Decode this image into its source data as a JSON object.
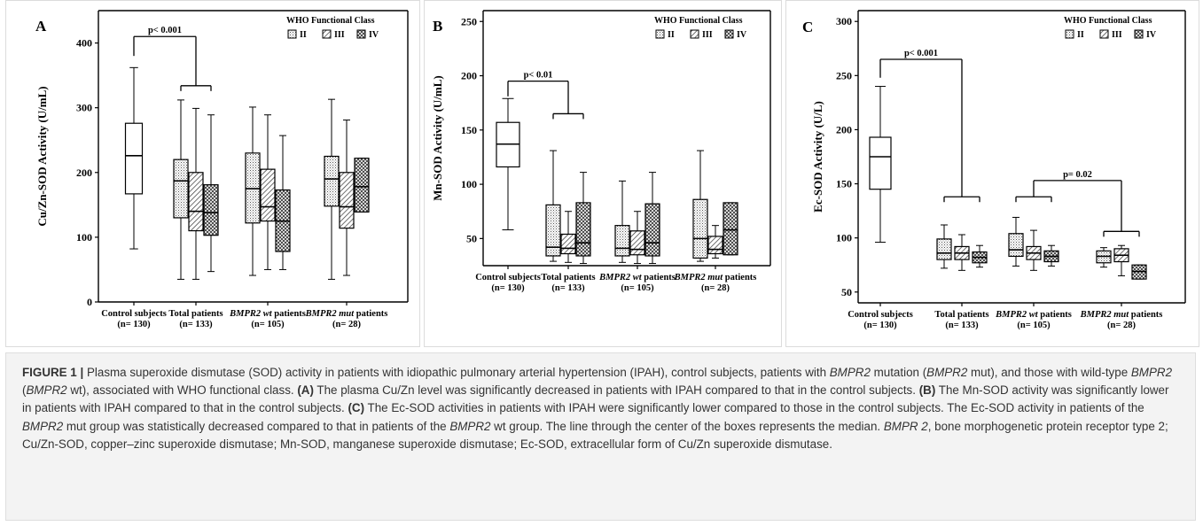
{
  "figure": {
    "caption_label": "FIGURE 1 |",
    "caption_segments": [
      {
        "t": "Plasma superoxide dismutase (SOD) activity in patients with idiopathic pulmonary arterial hypertension (IPAH), control subjects, patients with "
      },
      {
        "t": "BMPR2",
        "s": "i"
      },
      {
        "t": " mutation ("
      },
      {
        "t": "BMPR2",
        "s": "i"
      },
      {
        "t": " mut), and those with wild-type "
      },
      {
        "t": "BMPR2",
        "s": "i"
      },
      {
        "t": " ("
      },
      {
        "t": "BMPR2",
        "s": "i"
      },
      {
        "t": " wt), associated with WHO functional class. "
      },
      {
        "t": "(A)",
        "s": "b"
      },
      {
        "t": " The plasma Cu/Zn level was significantly decreased in patients with IPAH compared to that in the control subjects. "
      },
      {
        "t": "(B)",
        "s": "b"
      },
      {
        "t": " The Mn-SOD activity was significantly lower in patients with IPAH compared to that in the control subjects. "
      },
      {
        "t": "(C)",
        "s": "b"
      },
      {
        "t": " The Ec-SOD activities in patients with IPAH were significantly lower compared to those in the control subjects. The Ec-SOD activity in patients of the "
      },
      {
        "t": "BMPR2",
        "s": "i"
      },
      {
        "t": " mut group was statistically decreased compared to that in patients of the "
      },
      {
        "t": "BMPR2",
        "s": "i"
      },
      {
        "t": " wt group. The line through the center of the boxes represents the median. "
      },
      {
        "t": "BMPR 2",
        "s": "i"
      },
      {
        "t": ", bone morphogenetic protein receptor type 2; Cu/Zn-SOD, copper–zinc superoxide dismutase; Mn-SOD, manganese superoxide dismutase; Ec-SOD, extracellular form of Cu/Zn superoxide dismutase."
      }
    ]
  },
  "chart_data": [
    {
      "type": "box",
      "panel_label": "A",
      "ylabel": "Cu/Zn-SOD Activity (U/mL)",
      "ylim": [
        0,
        450
      ],
      "yticks": [
        0,
        100,
        200,
        300,
        400
      ],
      "legend": {
        "title": "WHO Functional Class",
        "items": [
          "II",
          "III",
          "IV"
        ],
        "placement": "top-right"
      },
      "groups": [
        {
          "line1": "Control subjects",
          "italic": "",
          "line2": "(n= 130)"
        },
        {
          "line1": "Total patients",
          "italic": "",
          "line2": "(n= 133)"
        },
        {
          "line1": " patients",
          "italic": "BMPR2 wt",
          "line2": "(n= 105)"
        },
        {
          "line1": " patients",
          "italic": "BMPR2 mut",
          "line2": "(n= 28)"
        }
      ],
      "boxes": [
        {
          "group": 0,
          "class": "control",
          "min": 82,
          "q1": 167,
          "median": 226,
          "q3": 276,
          "max": 362
        },
        {
          "group": 1,
          "class": "II",
          "min": 35,
          "q1": 130,
          "median": 187,
          "q3": 220,
          "max": 312
        },
        {
          "group": 1,
          "class": "III",
          "min": 35,
          "q1": 110,
          "median": 140,
          "q3": 200,
          "max": 299
        },
        {
          "group": 1,
          "class": "IV",
          "min": 47,
          "q1": 103,
          "median": 138,
          "q3": 181,
          "max": 289
        },
        {
          "group": 2,
          "class": "II",
          "min": 41,
          "q1": 122,
          "median": 175,
          "q3": 230,
          "max": 301
        },
        {
          "group": 2,
          "class": "III",
          "min": 50,
          "q1": 125,
          "median": 147,
          "q3": 205,
          "max": 289
        },
        {
          "group": 2,
          "class": "IV",
          "min": 50,
          "q1": 78,
          "median": 125,
          "q3": 173,
          "max": 257
        },
        {
          "group": 3,
          "class": "II",
          "min": 35,
          "q1": 148,
          "median": 190,
          "q3": 225,
          "max": 313
        },
        {
          "group": 3,
          "class": "III",
          "min": 41,
          "q1": 114,
          "median": 147,
          "q3": 200,
          "max": 281
        },
        {
          "group": 3,
          "class": "IV",
          "min": 139,
          "q1": 139,
          "median": 178,
          "q3": 222,
          "max": 222
        }
      ],
      "annotations": [
        {
          "text": "p< 0.001",
          "from_group": 0,
          "to_group": 1,
          "from_y": 380,
          "to_y": 334,
          "bar_y": 410
        }
      ]
    },
    {
      "type": "box",
      "panel_label": "B",
      "ylabel": "Mn-SOD Activity (U/mL)",
      "ylim": [
        25,
        260
      ],
      "yticks": [
        50,
        100,
        150,
        200,
        250
      ],
      "legend": {
        "title": "WHO Functional Class",
        "items": [
          "II",
          "III",
          "IV"
        ],
        "placement": "top-right"
      },
      "groups": [
        {
          "line1": "Control subjects",
          "italic": "",
          "line2": "(n= 130)"
        },
        {
          "line1": "Total patients",
          "italic": "",
          "line2": "(n= 133)"
        },
        {
          "line1": " patients",
          "italic": "BMPR2 wt",
          "line2": "(n= 105)"
        },
        {
          "line1": " patients",
          "italic": "BMPR2 mut",
          "line2": "(n= 28)"
        }
      ],
      "boxes": [
        {
          "group": 0,
          "class": "control",
          "min": 58,
          "q1": 116,
          "median": 137,
          "q3": 157,
          "max": 179
        },
        {
          "group": 1,
          "class": "II",
          "min": 29,
          "q1": 34,
          "median": 42,
          "q3": 81,
          "max": 131
        },
        {
          "group": 1,
          "class": "III",
          "min": 28,
          "q1": 36,
          "median": 41,
          "q3": 54,
          "max": 75
        },
        {
          "group": 1,
          "class": "IV",
          "min": 27,
          "q1": 34,
          "median": 46,
          "q3": 83,
          "max": 111
        },
        {
          "group": 2,
          "class": "II",
          "min": 28,
          "q1": 34,
          "median": 41,
          "q3": 62,
          "max": 103
        },
        {
          "group": 2,
          "class": "III",
          "min": 27,
          "q1": 35,
          "median": 40,
          "q3": 57,
          "max": 75
        },
        {
          "group": 2,
          "class": "IV",
          "min": 27,
          "q1": 34,
          "median": 46,
          "q3": 82,
          "max": 111
        },
        {
          "group": 3,
          "class": "II",
          "min": 29,
          "q1": 32,
          "median": 50,
          "q3": 86,
          "max": 131
        },
        {
          "group": 3,
          "class": "III",
          "min": 32,
          "q1": 36,
          "median": 40,
          "q3": 52,
          "max": 62
        },
        {
          "group": 3,
          "class": "IV",
          "min": 35,
          "q1": 35,
          "median": 58,
          "q3": 83,
          "max": 83
        }
      ],
      "annotations": [
        {
          "text": "p< 0.01",
          "from_group": 0,
          "to_group": 1,
          "from_y": 181,
          "to_y": 165,
          "bar_y": 195
        }
      ]
    },
    {
      "type": "box",
      "panel_label": "C",
      "ylabel": "Ec-SOD Activity (U/L)",
      "ylim": [
        40,
        310
      ],
      "yticks": [
        50,
        100,
        150,
        200,
        250,
        300
      ],
      "legend": {
        "title": "WHO Functional Class",
        "items": [
          "II",
          "III",
          "IV"
        ],
        "placement": "top-right"
      },
      "groups": [
        {
          "line1": "Control subjects",
          "italic": "",
          "line2": "(n= 130)"
        },
        {
          "line1": "Total patients",
          "italic": "",
          "line2": "(n= 133)"
        },
        {
          "line1": " patients",
          "italic": "BMPR2 wt",
          "line2": "(n= 105)"
        },
        {
          "line1": " patients",
          "italic": "BMPR2 mut",
          "line2": "(n= 28)"
        }
      ],
      "boxes": [
        {
          "group": 0,
          "class": "control",
          "min": 96,
          "q1": 145,
          "median": 175,
          "q3": 193,
          "max": 240
        },
        {
          "group": 1,
          "class": "II",
          "min": 72,
          "q1": 80,
          "median": 86,
          "q3": 99,
          "max": 112
        },
        {
          "group": 1,
          "class": "III",
          "min": 70,
          "q1": 80,
          "median": 86,
          "q3": 92,
          "max": 103
        },
        {
          "group": 1,
          "class": "IV",
          "min": 73,
          "q1": 77,
          "median": 82,
          "q3": 87,
          "max": 93
        },
        {
          "group": 2,
          "class": "II",
          "min": 74,
          "q1": 83,
          "median": 89,
          "q3": 104,
          "max": 119
        },
        {
          "group": 2,
          "class": "III",
          "min": 70,
          "q1": 80,
          "median": 86,
          "q3": 92,
          "max": 107
        },
        {
          "group": 2,
          "class": "IV",
          "min": 74,
          "q1": 78,
          "median": 83,
          "q3": 88,
          "max": 93
        },
        {
          "group": 3,
          "class": "II",
          "min": 73,
          "q1": 77,
          "median": 83,
          "q3": 88,
          "max": 91
        },
        {
          "group": 3,
          "class": "III",
          "min": 65,
          "q1": 78,
          "median": 84,
          "q3": 90,
          "max": 93
        },
        {
          "group": 3,
          "class": "IV",
          "min": 62,
          "q1": 62,
          "median": 69,
          "q3": 75,
          "max": 75
        }
      ],
      "annotations": [
        {
          "text": "p< 0.001",
          "from_group": 0,
          "to_group": 1,
          "from_y": 248,
          "to_y": 138,
          "bar_y": 265
        },
        {
          "text": "p= 0.02",
          "from_group": 2,
          "to_group": 3,
          "from_y": 138,
          "to_y": 106,
          "bar_y": 153
        }
      ]
    }
  ]
}
